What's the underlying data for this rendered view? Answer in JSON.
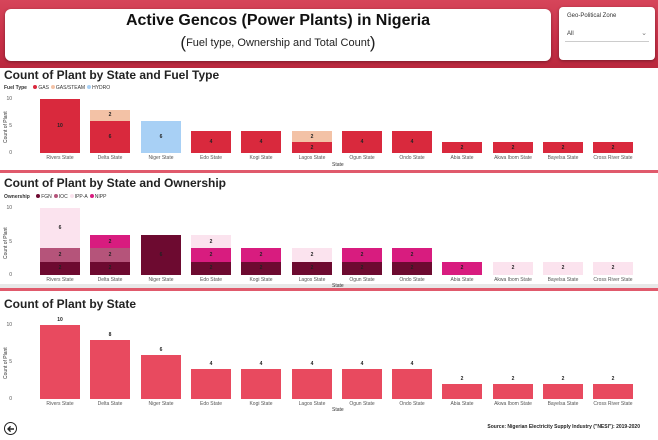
{
  "header": {
    "title": "Active Gencos (Power Plants) in Nigeria",
    "subtitle": "Fuel type, Ownership and Total Count"
  },
  "slicer": {
    "label": "Geo-Political Zone",
    "value": "All"
  },
  "states": [
    "Rivers State",
    "Delta State",
    "Niger State",
    "Edo State",
    "Kogi State",
    "Lagos State",
    "Ogun State",
    "Ondo State",
    "Abia State",
    "Akwa Ibom State",
    "Bayelsa State",
    "Cross River State"
  ],
  "axis": {
    "x_title": "State",
    "y_title": "Count of Plant"
  },
  "chart1": {
    "title": "Count of Plant by State and Fuel Type",
    "legend_title": "Fuel Type",
    "chart_data": {
      "type": "bar",
      "stacked": true,
      "categories": [
        "Rivers State",
        "Delta State",
        "Niger State",
        "Edo State",
        "Kogi State",
        "Lagos State",
        "Ogun State",
        "Ondo State",
        "Abia State",
        "Akwa Ibom State",
        "Bayelsa State",
        "Cross River State"
      ],
      "series": [
        {
          "name": "GAS",
          "color": "#d9293d",
          "values": [
            10,
            6,
            0,
            4,
            4,
            2,
            4,
            4,
            2,
            2,
            2,
            2
          ]
        },
        {
          "name": "GAS/STEAM",
          "color": "#f3c2a6",
          "values": [
            0,
            2,
            0,
            0,
            0,
            2,
            0,
            0,
            0,
            0,
            0,
            0
          ]
        },
        {
          "name": "HYDRO",
          "color": "#a8d0f5",
          "values": [
            0,
            0,
            6,
            0,
            0,
            0,
            0,
            0,
            0,
            0,
            0,
            0
          ]
        }
      ],
      "totals": [
        10,
        8,
        6,
        4,
        4,
        4,
        4,
        4,
        2,
        2,
        2,
        2
      ],
      "yticks": [
        0,
        5,
        10
      ],
      "ylim": [
        0,
        10
      ],
      "xlabel": "State",
      "ylabel": "Count of Plant"
    }
  },
  "chart2": {
    "title": "Count of Plant by State and Ownership",
    "legend_title": "Ownership",
    "chart_data": {
      "type": "bar",
      "stacked": true,
      "categories": [
        "Rivers State",
        "Delta State",
        "Niger State",
        "Edo State",
        "Kogi State",
        "Lagos State",
        "Ogun State",
        "Ondo State",
        "Abia State",
        "Akwa Ibom State",
        "Bayelsa State",
        "Cross River State"
      ],
      "series": [
        {
          "name": "FGN",
          "color": "#6d0a30",
          "values": [
            2,
            2,
            6,
            2,
            2,
            2,
            2,
            2,
            0,
            0,
            0,
            0
          ]
        },
        {
          "name": "IOC",
          "color": "#b5547a",
          "values": [
            2,
            2,
            0,
            0,
            0,
            0,
            0,
            0,
            0,
            0,
            0,
            0
          ]
        },
        {
          "name": "IPP-A",
          "color": "#fbe3ee",
          "values": [
            6,
            0,
            0,
            2,
            0,
            2,
            0,
            0,
            0,
            2,
            2,
            2
          ]
        },
        {
          "name": "NIPP",
          "color": "#d81c7f",
          "values": [
            0,
            2,
            0,
            2,
            2,
            0,
            2,
            2,
            2,
            0,
            0,
            0
          ]
        }
      ],
      "order": [
        "FGN",
        "IOC",
        "NIPP",
        "IPP-A"
      ],
      "yticks": [
        0,
        5,
        10
      ],
      "ylim": [
        0,
        10
      ],
      "xlabel": "State",
      "ylabel": "Count of Plant"
    }
  },
  "chart3": {
    "title": "Count of Plant by State",
    "chart_data": {
      "type": "bar",
      "categories": [
        "Rivers State",
        "Delta State",
        "Niger State",
        "Edo State",
        "Kogi State",
        "Lagos State",
        "Ogun State",
        "Ondo State",
        "Abia State",
        "Akwa Ibom State",
        "Bayelsa State",
        "Cross River State"
      ],
      "values": [
        10,
        8,
        6,
        4,
        4,
        4,
        4,
        4,
        2,
        2,
        2,
        2
      ],
      "color": "#e84a5f",
      "yticks": [
        0,
        5,
        10
      ],
      "ylim": [
        0,
        10
      ],
      "xlabel": "State",
      "ylabel": "Count of Plant"
    }
  },
  "footer": {
    "source": "Source: Nigerian Electricity Supply Industry (\"NESI\"): 2019-2020"
  }
}
